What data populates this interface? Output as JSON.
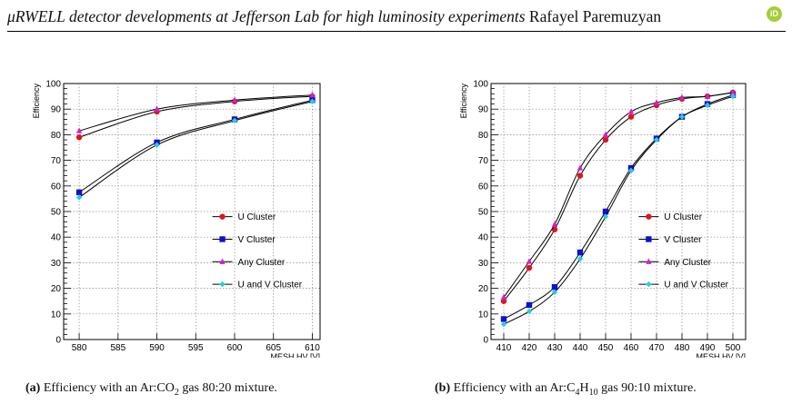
{
  "header": {
    "title": "μRWELL detector developments at Jefferson Lab for high luminosity experiments",
    "author": "Rafayel Paremuzyan",
    "orcid_icon": "orcid-icon",
    "orcid_color": "#a6ce39"
  },
  "series_styles": [
    {
      "name": "U Cluster",
      "color": "#e0141e",
      "marker": "circle"
    },
    {
      "name": "V Cluster",
      "color": "#1010d0",
      "marker": "square"
    },
    {
      "name": "Any Cluster",
      "color": "#d020d0",
      "marker": "triangle"
    },
    {
      "name": "U and V Cluster",
      "color": "#20d0e0",
      "marker": "diamond"
    }
  ],
  "figures": [
    {
      "caption_label": "(a)",
      "caption_pre": "Efficiency with an Ar:CO",
      "caption_sub1": "2",
      "caption_post": " gas 80:20 mixture.",
      "chart_data": {
        "type": "line",
        "xlabel": "MESH HV [V]",
        "ylabel": "Efficiency",
        "xlim": [
          578,
          611
        ],
        "ylim": [
          0,
          100
        ],
        "grid": true,
        "legend_position": "center-right",
        "xticks": [
          580,
          585,
          590,
          595,
          600,
          605,
          610
        ],
        "yticks": [
          0,
          10,
          20,
          30,
          40,
          50,
          60,
          70,
          80,
          90,
          100
        ],
        "x": [
          580,
          590,
          600,
          610
        ],
        "series": [
          {
            "name": "U Cluster",
            "values": [
              79,
              89,
              93,
              95
            ]
          },
          {
            "name": "V Cluster",
            "values": [
              57.5,
              77,
              86,
              93.5
            ]
          },
          {
            "name": "Any Cluster",
            "values": [
              81.5,
              90,
              93.5,
              95.5
            ]
          },
          {
            "name": "U and V Cluster",
            "values": [
              55.5,
              76,
              85.5,
              93
            ]
          }
        ]
      }
    },
    {
      "caption_label": "(b)",
      "caption_pre": "Efficiency with an Ar:C",
      "caption_sub1": "4",
      "caption_mid": "H",
      "caption_sub2": "10",
      "caption_post": " gas 90:10 mixture.",
      "chart_data": {
        "type": "line",
        "xlabel": "MESH HV [V]",
        "ylabel": "Efficiency",
        "xlim": [
          405,
          505
        ],
        "ylim": [
          0,
          100
        ],
        "grid": true,
        "legend_position": "center-right",
        "xticks": [
          410,
          420,
          430,
          440,
          450,
          460,
          470,
          480,
          490,
          500
        ],
        "yticks": [
          0,
          10,
          20,
          30,
          40,
          50,
          60,
          70,
          80,
          90,
          100
        ],
        "x": [
          410,
          420,
          430,
          440,
          450,
          460,
          470,
          480,
          490,
          500
        ],
        "series": [
          {
            "name": "U Cluster",
            "values": [
              15,
              28,
              43,
              64,
              78,
              87,
              91.5,
              94,
              95,
              96.5
            ]
          },
          {
            "name": "V Cluster",
            "values": [
              8,
              13.5,
              20.5,
              34,
              50,
              67,
              78.5,
              87,
              92,
              95.5
            ]
          },
          {
            "name": "Any Cluster",
            "values": [
              16.5,
              30.5,
              45,
              67,
              80,
              89,
              92.5,
              94.5,
              95,
              96.5
            ]
          },
          {
            "name": "U and V Cluster",
            "values": [
              6,
              11,
              18.5,
              31.5,
              48,
              66,
              78,
              87,
              91.5,
              95
            ]
          }
        ]
      }
    }
  ]
}
